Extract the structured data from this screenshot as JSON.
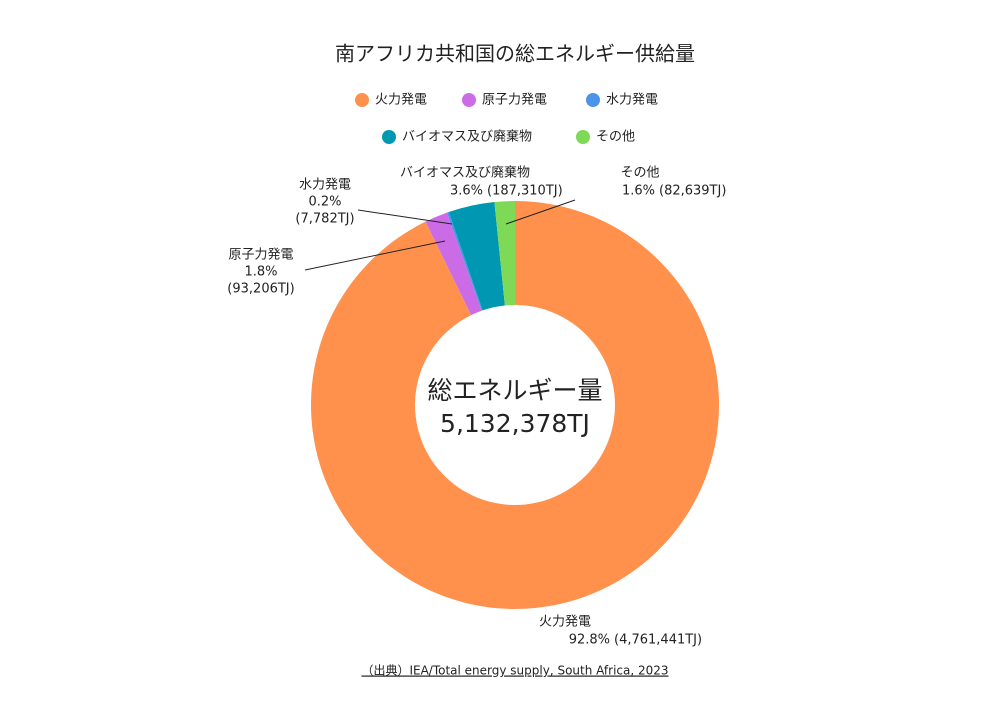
{
  "chart_data": {
    "type": "donut",
    "title": "南アフリカ共和国の総エネルギー供給量",
    "categories": [
      "火力発電",
      "原子力発電",
      "水力発電",
      "バイオマス及び廃棄物",
      "その他"
    ],
    "values": [
      4761441,
      93206,
      7782,
      187310,
      82639
    ],
    "value_labels": [
      "(4,761,441TJ)",
      "(93,206TJ)",
      "(7,782TJ)",
      "(187,310TJ)",
      "(82,639TJ)"
    ],
    "percents": [
      92.8,
      1.8,
      0.2,
      3.6,
      1.6
    ],
    "percent_labels": [
      "92.8%",
      "1.8%",
      "0.2%",
      "3.6%",
      "1.6%"
    ],
    "colors": [
      "#ff914d",
      "#cb6ce6",
      "#4d94e8",
      "#0097b2",
      "#7ed957"
    ],
    "center_title": "総エネルギー量",
    "total": {
      "value": 5132378,
      "label": "5,132,378TJ"
    },
    "source": "（出典）IEA/Total energy supply, South Africa, 2023"
  }
}
